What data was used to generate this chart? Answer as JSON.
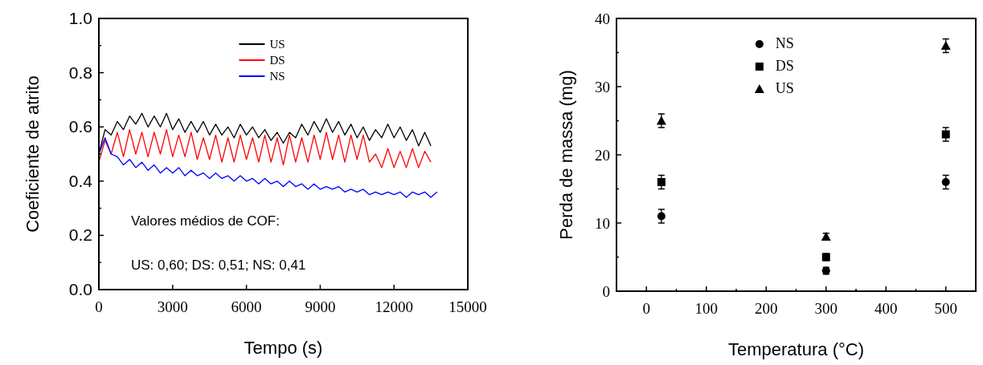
{
  "chart_data": [
    {
      "type": "line",
      "xlabel": "Tempo (s)",
      "ylabel": "Coeficiente de atrito",
      "xlim": [
        0,
        15000
      ],
      "xticks": [
        0,
        3000,
        6000,
        9000,
        12000,
        15000
      ],
      "ylim": [
        0,
        1
      ],
      "yticks": [
        {
          "value": 0,
          "label": "0.0"
        },
        {
          "value": 0.1,
          "label": null
        },
        {
          "value": 0.2,
          "label": "0.2"
        },
        {
          "value": 0.3,
          "label": null
        },
        {
          "value": 0.4,
          "label": "0.4"
        },
        {
          "value": 0.5,
          "label": null
        },
        {
          "value": 0.6,
          "label": "0.6"
        },
        {
          "value": 0.7,
          "label": null
        },
        {
          "value": 0.8,
          "label": "0.8"
        },
        {
          "value": 0.9,
          "label": null
        },
        {
          "value": 1,
          "label": "1.0"
        }
      ],
      "legend": "top",
      "grid": false,
      "x": [
        0,
        250,
        500,
        750,
        1000,
        1250,
        1500,
        1750,
        2000,
        2250,
        2500,
        2750,
        3000,
        3250,
        3500,
        3750,
        4000,
        4250,
        4500,
        4750,
        5000,
        5250,
        5500,
        5750,
        6000,
        6250,
        6500,
        6750,
        7000,
        7250,
        7500,
        7750,
        8000,
        8250,
        8500,
        8750,
        9000,
        9250,
        9500,
        9750,
        10000,
        10250,
        10500,
        10750,
        11000,
        11250,
        11500,
        11750,
        12000,
        12250,
        12500,
        12750,
        13000,
        13250,
        13500,
        13750
      ],
      "series": [
        {
          "name": "US",
          "color": "#000000",
          "values": [
            0.5,
            0.59,
            0.57,
            0.62,
            0.59,
            0.64,
            0.61,
            0.65,
            0.6,
            0.64,
            0.6,
            0.65,
            0.59,
            0.63,
            0.58,
            0.62,
            0.58,
            0.62,
            0.57,
            0.61,
            0.57,
            0.6,
            0.56,
            0.61,
            0.57,
            0.6,
            0.56,
            0.59,
            0.55,
            0.58,
            0.54,
            0.58,
            0.56,
            0.61,
            0.57,
            0.62,
            0.58,
            0.63,
            0.58,
            0.62,
            0.57,
            0.61,
            0.56,
            0.6,
            0.55,
            0.59,
            0.56,
            0.61,
            0.56,
            0.6,
            0.55,
            0.59,
            0.53,
            0.58,
            0.53,
            null
          ]
        },
        {
          "name": "DS",
          "color": "#ff0000",
          "values": [
            0.47,
            0.55,
            0.5,
            0.58,
            0.49,
            0.59,
            0.5,
            0.58,
            0.49,
            0.58,
            0.5,
            0.59,
            0.49,
            0.57,
            0.49,
            0.58,
            0.48,
            0.56,
            0.48,
            0.57,
            0.47,
            0.56,
            0.47,
            0.57,
            0.48,
            0.56,
            0.47,
            0.57,
            0.47,
            0.56,
            0.46,
            0.57,
            0.47,
            0.56,
            0.47,
            0.57,
            0.48,
            0.58,
            0.48,
            0.57,
            0.47,
            0.57,
            0.48,
            0.57,
            0.47,
            0.5,
            0.45,
            0.52,
            0.45,
            0.51,
            0.45,
            0.52,
            0.45,
            0.51,
            0.47,
            null
          ]
        },
        {
          "name": "NS",
          "color": "#0000ff",
          "values": [
            0.5,
            0.56,
            0.5,
            0.49,
            0.46,
            0.48,
            0.45,
            0.47,
            0.44,
            0.46,
            0.43,
            0.45,
            0.43,
            0.45,
            0.42,
            0.44,
            0.42,
            0.43,
            0.41,
            0.43,
            0.41,
            0.42,
            0.4,
            0.42,
            0.4,
            0.41,
            0.39,
            0.41,
            0.39,
            0.4,
            0.38,
            0.4,
            0.38,
            0.39,
            0.37,
            0.39,
            0.37,
            0.38,
            0.37,
            0.38,
            0.36,
            0.37,
            0.36,
            0.37,
            0.35,
            0.36,
            0.35,
            0.36,
            0.35,
            0.36,
            0.34,
            0.36,
            0.35,
            0.36,
            0.34,
            0.36
          ]
        }
      ],
      "annotations": [
        "Valores médios de COF:",
        "US: 0,60; DS: 0,51; NS: 0,41"
      ]
    },
    {
      "type": "scatter",
      "xlabel": "Temperatura (°C)",
      "ylabel": "Perda de massa (mg)",
      "xlim": [
        -50,
        550
      ],
      "xticks": [
        0,
        {
          "value": 50,
          "label": null
        },
        100,
        {
          "value": 150,
          "label": null
        },
        200,
        {
          "value": 250,
          "label": null
        },
        300,
        {
          "value": 350,
          "label": null
        },
        400,
        {
          "value": 450,
          "label": null
        },
        500
      ],
      "ylim": [
        0,
        40
      ],
      "yticks": [
        0,
        {
          "value": 5,
          "label": null
        },
        10,
        {
          "value": 15,
          "label": null
        },
        20,
        {
          "value": 25,
          "label": null
        },
        30,
        {
          "value": 35,
          "label": null
        },
        40
      ],
      "legend": "top",
      "grid": false,
      "x": [
        25,
        300,
        500
      ],
      "series": [
        {
          "name": "NS",
          "color": "#000000",
          "marker": "circle",
          "values": [
            11,
            3,
            16
          ],
          "errors": [
            1,
            0.5,
            1
          ]
        },
        {
          "name": "DS",
          "color": "#000000",
          "marker": "square",
          "values": [
            16,
            5,
            23
          ],
          "errors": [
            1,
            0.5,
            1
          ]
        },
        {
          "name": "US",
          "color": "#000000",
          "marker": "triangle",
          "values": [
            25,
            8,
            36
          ],
          "errors": [
            1,
            0.5,
            1
          ]
        }
      ]
    }
  ]
}
